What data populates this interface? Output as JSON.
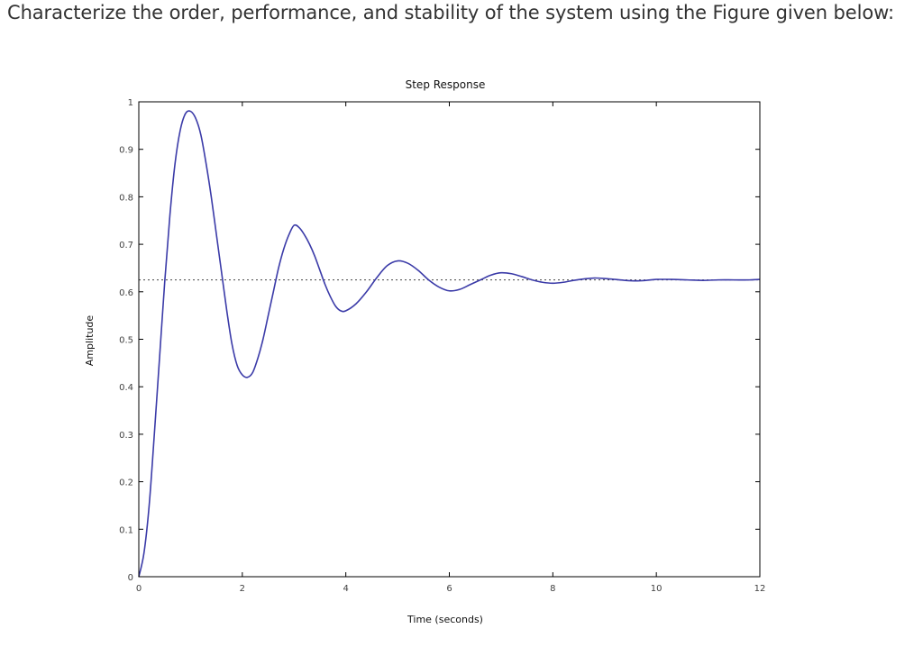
{
  "question": {
    "text": "Characterize the order, performance, and stability of the system using the Figure given below:"
  },
  "chart_data": {
    "type": "line",
    "title": "Step Response",
    "xlabel": "Time (seconds)",
    "ylabel": "Amplitude",
    "xlim": [
      0,
      12
    ],
    "ylim": [
      0,
      1
    ],
    "xticks": [
      0,
      2,
      4,
      6,
      8,
      10,
      12
    ],
    "yticks": [
      0,
      0.1,
      0.2,
      0.3,
      0.4,
      0.5,
      0.6,
      0.7,
      0.8,
      0.9,
      1
    ],
    "xtick_labels": [
      "0",
      "2",
      "4",
      "6",
      "8",
      "10",
      "12"
    ],
    "ytick_labels": [
      "0",
      "0.1",
      "0.2",
      "0.3",
      "0.4",
      "0.5",
      "0.6",
      "0.7",
      "0.8",
      "0.9",
      "1"
    ],
    "grid": false,
    "steady_state_reference": 0.625,
    "line_color": "#3b3ba8",
    "reference_color": "#444444",
    "series": [
      {
        "x": [
          0,
          0.1,
          0.2,
          0.3,
          0.4,
          0.5,
          0.6,
          0.7,
          0.8,
          0.9,
          1.0,
          1.1,
          1.2,
          1.3,
          1.4,
          1.5,
          1.6,
          1.7,
          1.8,
          1.9,
          2.0,
          2.1,
          2.2,
          2.3,
          2.4,
          2.5,
          2.6,
          2.7,
          2.8,
          2.9,
          3.0,
          3.1,
          3.2,
          3.3,
          3.4,
          3.5,
          3.6,
          3.7,
          3.8,
          3.9,
          4.0,
          4.2,
          4.4,
          4.6,
          4.8,
          5.0,
          5.2,
          5.4,
          5.6,
          5.8,
          6.0,
          6.2,
          6.4,
          6.6,
          6.8,
          7.0,
          7.2,
          7.4,
          7.6,
          7.8,
          8.0,
          8.2,
          8.4,
          8.6,
          8.8,
          9.0,
          9.2,
          9.4,
          9.6,
          9.8,
          10.0,
          10.3,
          10.6,
          10.9,
          11.2,
          11.5,
          11.8,
          12.0
        ],
        "y": [
          0.0,
          0.05,
          0.15,
          0.3,
          0.46,
          0.62,
          0.76,
          0.87,
          0.94,
          0.975,
          0.98,
          0.965,
          0.93,
          0.87,
          0.8,
          0.72,
          0.64,
          0.56,
          0.49,
          0.445,
          0.425,
          0.42,
          0.43,
          0.46,
          0.5,
          0.55,
          0.6,
          0.65,
          0.69,
          0.72,
          0.74,
          0.735,
          0.72,
          0.7,
          0.675,
          0.645,
          0.615,
          0.59,
          0.57,
          0.56,
          0.56,
          0.575,
          0.6,
          0.63,
          0.655,
          0.665,
          0.66,
          0.645,
          0.625,
          0.61,
          0.602,
          0.605,
          0.615,
          0.625,
          0.635,
          0.64,
          0.638,
          0.632,
          0.625,
          0.62,
          0.618,
          0.62,
          0.624,
          0.627,
          0.629,
          0.628,
          0.626,
          0.624,
          0.623,
          0.624,
          0.626,
          0.626,
          0.625,
          0.624,
          0.625,
          0.625,
          0.625,
          0.626
        ]
      }
    ]
  }
}
